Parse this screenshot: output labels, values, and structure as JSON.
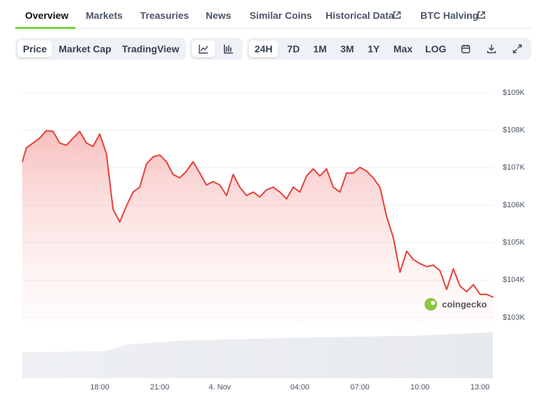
{
  "tabs": {
    "overview": "Overview",
    "markets": "Markets",
    "treasuries": "Treasuries",
    "news": "News",
    "similar": "Similar Coins",
    "historical": "Historical Data",
    "halving": "BTC Halving"
  },
  "chart_views": [
    "Price",
    "Market Cap",
    "TradingView"
  ],
  "ranges": [
    "24H",
    "7D",
    "1M",
    "3M",
    "1Y",
    "Max",
    "LOG"
  ],
  "watermark": "coingecko",
  "chart_data": {
    "type": "line",
    "categories": [
      null,
      null,
      null,
      null,
      null,
      null,
      null,
      null,
      null,
      null,
      null,
      null,
      "18:00",
      null,
      null,
      null,
      null,
      null,
      null,
      null,
      null,
      "21:00",
      null,
      null,
      null,
      null,
      null,
      null,
      null,
      null,
      "4. Nov",
      null,
      null,
      null,
      null,
      null,
      null,
      null,
      null,
      null,
      null,
      null,
      "04:00",
      null,
      null,
      null,
      null,
      null,
      null,
      null,
      null,
      "07:00",
      null,
      null,
      null,
      null,
      null,
      null,
      null,
      null,
      "10:00",
      null,
      null,
      null,
      null,
      null,
      null,
      null,
      null,
      "13:00",
      null,
      null
    ],
    "series": [
      {
        "color": "#e5403a",
        "values": [
          107160,
          107530,
          107660,
          107790,
          107990,
          107970,
          107660,
          107600,
          107790,
          107970,
          107660,
          107570,
          107900,
          107380,
          105890,
          105550,
          105980,
          106350,
          106480,
          107100,
          107290,
          107340,
          107160,
          106820,
          106730,
          106910,
          107160,
          106860,
          106540,
          106630,
          106540,
          106260,
          106820,
          106480,
          106260,
          106350,
          106220,
          106410,
          106480,
          106350,
          106170,
          106480,
          106350,
          106780,
          106970,
          106780,
          106970,
          106480,
          106350,
          106860,
          106860,
          107010,
          106910,
          106730,
          106480,
          105700,
          105140,
          104210,
          104770,
          104550,
          104440,
          104360,
          104400,
          104250,
          103750,
          104300,
          103840,
          103690,
          103880,
          103620,
          103620,
          103540
        ]
      }
    ],
    "ylim": [
      103000,
      109000
    ],
    "yticks": [
      {
        "value": 103000,
        "label": "$103K"
      },
      {
        "value": 104000,
        "label": "$104K"
      },
      {
        "value": 105000,
        "label": "$105K"
      },
      {
        "value": 106000,
        "label": "$106K"
      },
      {
        "value": 107000,
        "label": "$107K"
      },
      {
        "value": 108000,
        "label": "$108K"
      },
      {
        "value": 109000,
        "label": "$109K"
      }
    ],
    "grid": true
  }
}
